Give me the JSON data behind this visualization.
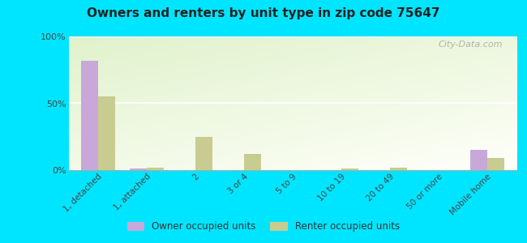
{
  "title": "Owners and renters by unit type in zip code 75647",
  "categories": [
    "1, detached",
    "1, attached",
    "2",
    "3 or 4",
    "5 to 9",
    "10 to 19",
    "20 to 49",
    "50 or more",
    "Mobile home"
  ],
  "owner_values": [
    82,
    1,
    0,
    0,
    0,
    0,
    0,
    0,
    15
  ],
  "renter_values": [
    55,
    2,
    25,
    12,
    0,
    1,
    2,
    0,
    9
  ],
  "owner_color": "#c8a8d8",
  "renter_color": "#c8cc90",
  "outer_bg": "#00e5ff",
  "ylim": [
    0,
    100
  ],
  "yticks": [
    0,
    50,
    100
  ],
  "ytick_labels": [
    "0%",
    "50%",
    "100%"
  ],
  "bar_width": 0.35,
  "legend_owner": "Owner occupied units",
  "legend_renter": "Renter occupied units",
  "watermark": "City-Data.com"
}
